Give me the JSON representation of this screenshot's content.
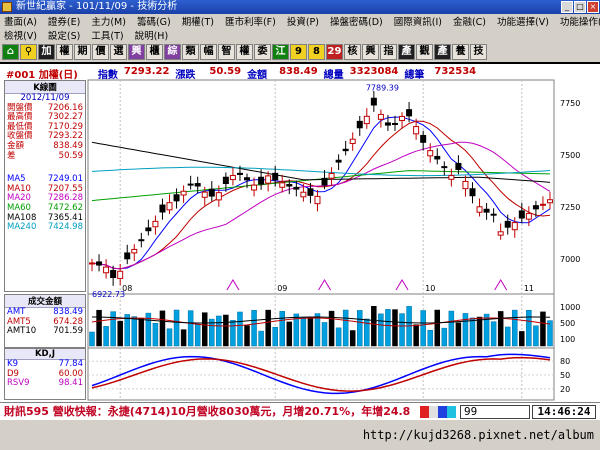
{
  "window": {
    "title": "新世紀贏家 - 101/11/09 - 技術分析"
  },
  "menu": {
    "row1": [
      "畫面(A)",
      "證券(E)",
      "主力(M)",
      "籌碼(G)",
      "期權(T)",
      "匯市利率(F)",
      "投資(P)",
      "操盤密碼(D)",
      "國際資訊(I)",
      "金融(C)",
      "功能選擇(V)",
      "功能操作(F)"
    ],
    "row2": [
      "檢視(V)",
      "設定(S)",
      "工具(T)",
      "說明(H)"
    ]
  },
  "toolbar": [
    "加",
    "權",
    "期",
    "價",
    "選",
    "興",
    "櫃",
    "綜",
    "類",
    "幅",
    "智",
    "權",
    "委",
    "江",
    "9",
    "8",
    "29",
    "核",
    "興",
    "指",
    "產",
    "觀",
    "產",
    "養",
    "技"
  ],
  "header": {
    "code": "#001 加權(日)",
    "index_label": "指數",
    "index_value": "7293.22",
    "change_label": "漲跌",
    "change_value": "50.59",
    "amount_label": "金額",
    "amount_value": "838.49",
    "volume_label": "總量",
    "volume_value": "3323084",
    "trades_label": "總筆",
    "trades_value": "732534"
  },
  "kline_panel": {
    "title": "K線圖",
    "date": "2012/11/09",
    "rows": [
      {
        "label": "開盤價",
        "value": "7206.16",
        "color": "#c00000"
      },
      {
        "label": "最高價",
        "value": "7302.27",
        "color": "#c00000"
      },
      {
        "label": "最低價",
        "value": "7170.29",
        "color": "#c00000"
      },
      {
        "label": "收盤價",
        "value": "7293.22",
        "color": "#c00000"
      },
      {
        "label": "金額",
        "value": "838.49",
        "color": "#c00000"
      },
      {
        "label": "差",
        "value": "50.59",
        "color": "#c00000"
      }
    ],
    "ma": [
      {
        "label": "MA5",
        "value": "7249.01",
        "color": "#0000ff"
      },
      {
        "label": "MA10",
        "value": "7207.55",
        "color": "#c00000"
      },
      {
        "label": "MA20",
        "value": "7286.28",
        "color": "#c000c0"
      },
      {
        "label": "MA60",
        "value": "7472.62",
        "color": "#00a000"
      },
      {
        "label": "MA108",
        "value": "7365.41",
        "color": "#000000"
      },
      {
        "label": "MA240",
        "value": "7424.98",
        "color": "#00a0c0"
      }
    ]
  },
  "volume_panel": {
    "title": "成交金額",
    "rows": [
      {
        "label": "AMT",
        "value": "838.49",
        "color": "#0000ff"
      },
      {
        "label": "AMT5",
        "value": "674.28",
        "color": "#c00000"
      },
      {
        "label": "AMT10",
        "value": "701.59",
        "color": "#000000"
      }
    ]
  },
  "kd_panel": {
    "title": "KD,J",
    "rows": [
      {
        "label": "K9",
        "value": "77.84",
        "color": "#0000ff"
      },
      {
        "label": "D9",
        "value": "60.00",
        "color": "#c00000"
      },
      {
        "label": "RSV9",
        "value": "98.41",
        "color": "#c000c0"
      }
    ]
  },
  "chart": {
    "high_label": "7789.39",
    "low_label": "6922.73",
    "price_ticks": [
      "7750",
      "7500",
      "7250",
      "7000"
    ],
    "volume_ticks": [
      "1000",
      "500",
      "100"
    ],
    "kd_ticks": [
      "80",
      "50",
      "20"
    ],
    "month_labels": [
      "08",
      "09",
      "10",
      "11"
    ],
    "colors": {
      "up": "#c00000",
      "down": "#000000",
      "ma5": "#0000ff",
      "ma10": "#c00000",
      "ma20": "#c000c0",
      "ma60": "#00a000",
      "ma120": "#000000",
      "ma240": "#00a0c0",
      "volume": "#00a0e0"
    }
  },
  "news": {
    "text": "財訊595 營收快報：永捷(4714)10月營收8030萬元，月增20.71%，年增24.8"
  },
  "pager": {
    "value": "99"
  },
  "clock": {
    "time": "14:46:24"
  },
  "url": {
    "text": "http://kujd3268.pixnet.net/album"
  }
}
